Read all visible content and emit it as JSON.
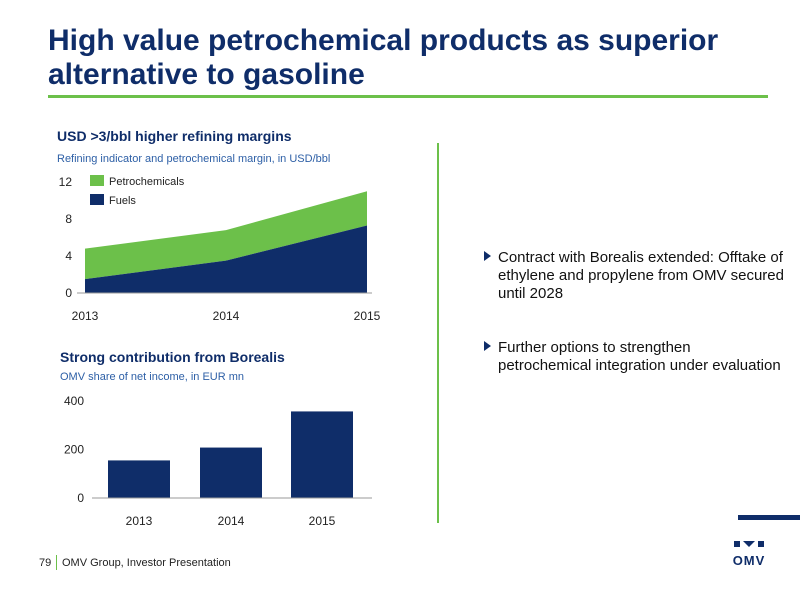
{
  "slide": {
    "title": "High value petrochemical products as superior alternative to gasoline",
    "bullets": [
      "Contract with Borealis extended: Offtake of ethylene and propylene from OMV secured until 2028",
      "Further options to strengthen petrochemical integration under evaluation"
    ],
    "footer": {
      "page_number": "79",
      "text": "OMV Group, Investor Presentation"
    },
    "logo_text": "OMV",
    "colors": {
      "navy": "#0f2d69",
      "green": "#6cc04a",
      "subtitle_blue": "#2d5fa6"
    }
  },
  "chart_data": [
    {
      "type": "area",
      "stacked": true,
      "title": "USD >3/bbl higher refining margins",
      "subtitle": "Refining indicator and petrochemical margin, in USD/bbl",
      "x": [
        "2013",
        "2014",
        "2015"
      ],
      "series": [
        {
          "name": "Fuels",
          "values": [
            1.5,
            3.5,
            7.3
          ],
          "color": "#0f2d69"
        },
        {
          "name": "Petrochemicals",
          "values": [
            3.3,
            3.3,
            3.7
          ],
          "color": "#6cc04a"
        }
      ],
      "yticks": [
        0,
        4,
        8,
        12
      ],
      "ylim": [
        0,
        12
      ],
      "legend_position": "top-left",
      "grid": false
    },
    {
      "type": "bar",
      "title": "Strong contribution from Borealis",
      "subtitle": "OMV share of net income, in EUR mn",
      "categories": [
        "2013",
        "2014",
        "2015"
      ],
      "values": [
        155,
        208,
        357
      ],
      "color": "#0f2d69",
      "yticks": [
        0,
        200,
        400
      ],
      "ylim": [
        0,
        400
      ],
      "grid": false
    }
  ]
}
